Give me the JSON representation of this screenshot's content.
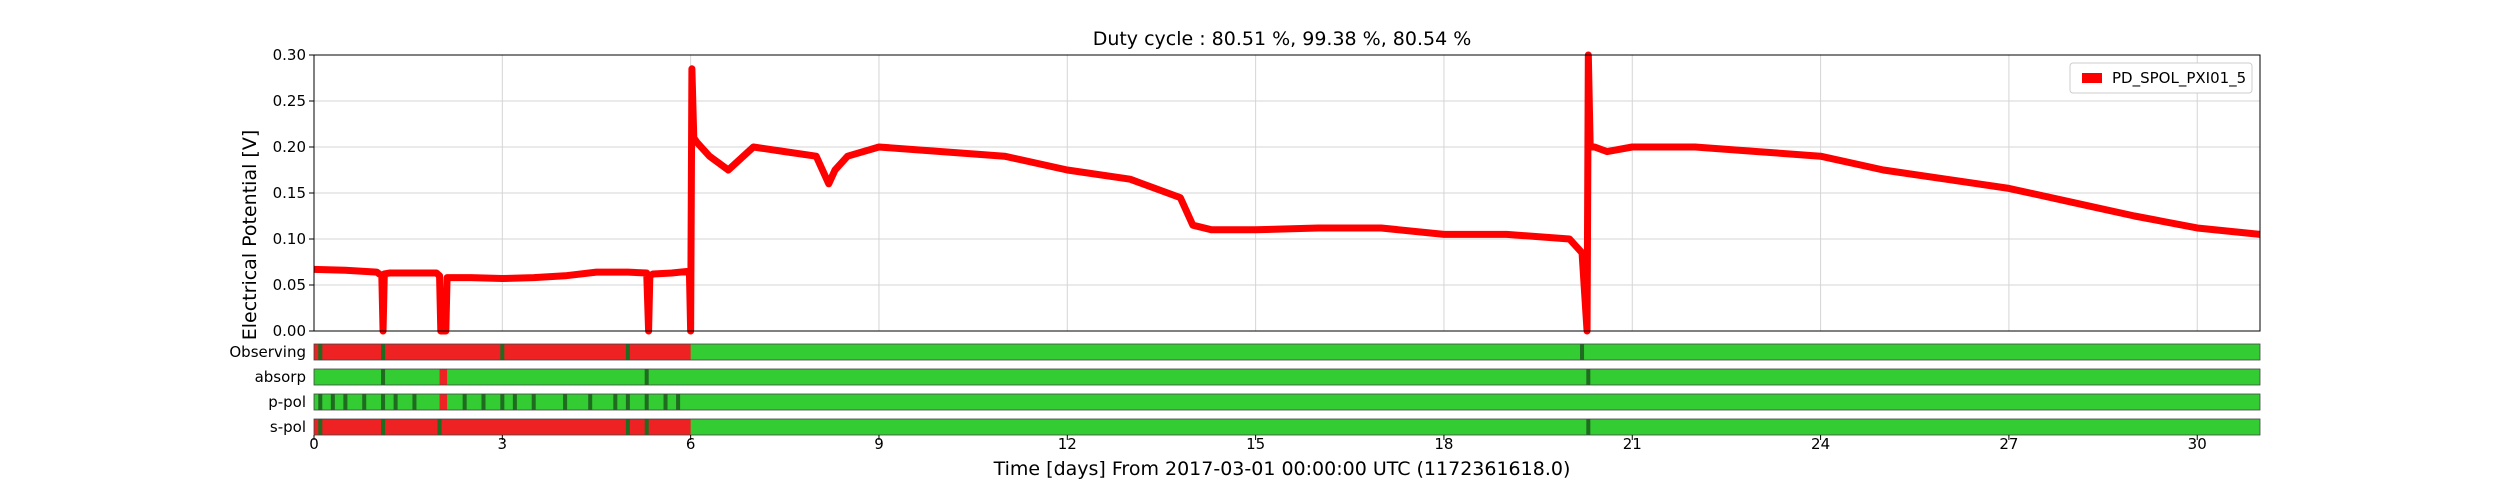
{
  "chart_data": {
    "type": "line",
    "title": "Duty cycle : 80.51 %, 99.38 %, 80.54 %",
    "xlabel": "Time [days] From 2017-03-01 00:00:00 UTC (1172361618.0)",
    "ylabel": "Electrical Potential [V]",
    "xlim": [
      0,
      31
    ],
    "ylim": [
      0,
      0.3
    ],
    "xticks": [
      "0",
      "3",
      "6",
      "9",
      "12",
      "15",
      "18",
      "21",
      "24",
      "27",
      "30"
    ],
    "yticks": [
      "0.00",
      "0.05",
      "0.10",
      "0.15",
      "0.20",
      "0.25",
      "0.30"
    ],
    "grid": true,
    "legend": {
      "position": "top-right",
      "entries": [
        "PD_SPOL_PXI01_5"
      ]
    },
    "series": [
      {
        "name": "PD_SPOL_PXI01_5",
        "color": "#ff0000",
        "x": [
          0,
          0.5,
          1.0,
          1.08,
          1.1,
          1.12,
          1.2,
          1.6,
          1.95,
          2.0,
          2.02,
          2.05,
          2.1,
          2.12,
          2.14,
          2.5,
          3.0,
          3.5,
          4.0,
          4.5,
          5.0,
          5.3,
          5.33,
          5.35,
          5.4,
          5.7,
          5.98,
          6.0,
          6.02,
          6.05,
          6.1,
          6.3,
          6.6,
          7.0,
          7.5,
          8.0,
          8.2,
          8.3,
          8.5,
          9.0,
          10.0,
          11.0,
          12.0,
          13.0,
          13.8,
          14.0,
          14.3,
          15.0,
          16.0,
          17.0,
          18.0,
          19.0,
          20.0,
          20.2,
          20.28,
          20.3,
          20.33,
          20.4,
          20.6,
          21.0,
          22.0,
          23.0,
          24.0,
          25.0,
          26.0,
          27.0,
          28.0,
          29.0,
          30.0,
          31.0
        ],
        "y": [
          0.067,
          0.066,
          0.064,
          0.06,
          0.0,
          0.062,
          0.063,
          0.063,
          0.063,
          0.06,
          0.0,
          0.0,
          0.0,
          0.058,
          0.058,
          0.058,
          0.057,
          0.058,
          0.06,
          0.064,
          0.064,
          0.063,
          0.0,
          0.06,
          0.062,
          0.063,
          0.065,
          0.0,
          0.285,
          0.21,
          0.205,
          0.19,
          0.175,
          0.2,
          0.195,
          0.19,
          0.16,
          0.175,
          0.19,
          0.2,
          0.195,
          0.19,
          0.175,
          0.165,
          0.145,
          0.115,
          0.11,
          0.11,
          0.112,
          0.112,
          0.105,
          0.105,
          0.1,
          0.085,
          0.0,
          0.3,
          0.2,
          0.2,
          0.195,
          0.2,
          0.2,
          0.195,
          0.19,
          0.175,
          0.165,
          0.155,
          0.14,
          0.125,
          0.112,
          0.105
        ]
      }
    ],
    "segments": [
      {
        "label": "Observing",
        "active_color": "#33cc33",
        "inactive_color": "#ee2222",
        "edge_color": "#1f6b1f",
        "active_from": [
          6,
          31
        ],
        "marks": [
          0.1,
          1.1,
          3.0,
          5.0,
          20.2
        ]
      },
      {
        "label": "absorp",
        "active_color": "#33cc33",
        "inactive_color": "#ee2222",
        "edge_color": "#1f6b1f",
        "active_from": [
          0,
          2.0,
          2.12,
          31
        ],
        "marks": [
          1.1,
          5.3,
          20.3
        ]
      },
      {
        "label": "p-pol",
        "active_color": "#33cc33",
        "inactive_color": "#ee2222",
        "edge_color": "#1f6b1f",
        "active_from": [
          0,
          2.0,
          2.12,
          31
        ],
        "marks": [
          0.1,
          0.3,
          0.5,
          0.8,
          1.1,
          1.3,
          1.6,
          2.4,
          2.7,
          3.0,
          3.2,
          3.5,
          4.0,
          4.4,
          4.8,
          5.0,
          5.3,
          5.6,
          5.8
        ]
      },
      {
        "label": "s-pol",
        "active_color": "#33cc33",
        "inactive_color": "#ee2222",
        "edge_color": "#1f6b1f",
        "active_from": [
          6,
          31
        ],
        "marks": [
          0.1,
          1.1,
          2.0,
          5.0,
          5.3,
          20.3
        ]
      }
    ]
  }
}
